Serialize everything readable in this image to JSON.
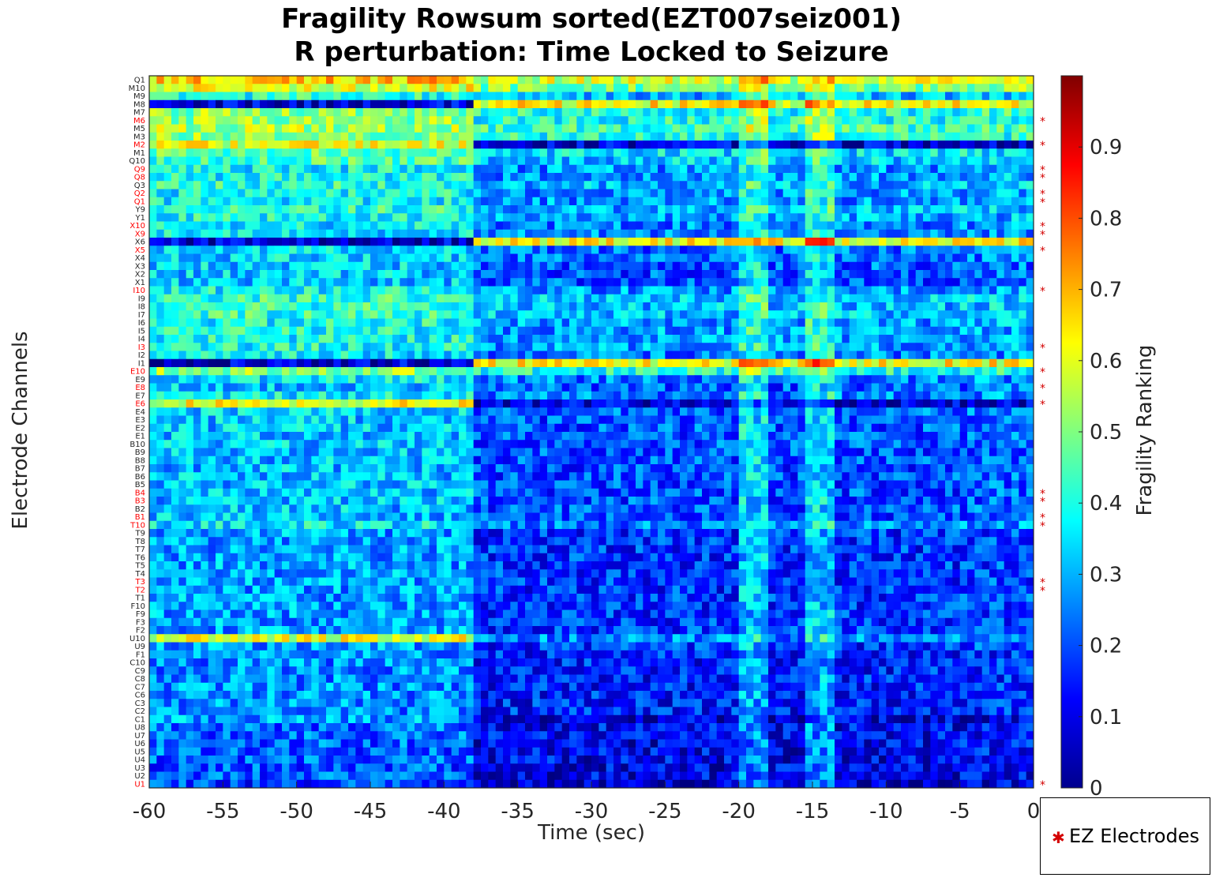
{
  "chart_data": {
    "type": "heatmap",
    "title": "Fragility Rowsum sorted(EZT007seiz001)",
    "subtitle": "R perturbation:  Time Locked to Seizure",
    "xlabel": "Time (sec)",
    "ylabel": "Electrode Channels",
    "colorbar_label": "Fragility Ranking",
    "xlim": [
      -60,
      0
    ],
    "x_ticks": [
      "-60",
      "-55",
      "-50",
      "-45",
      "-40",
      "-35",
      "-30",
      "-25",
      "-20",
      "-15",
      "-10",
      "-5",
      "0"
    ],
    "colorbar_range": [
      0,
      1
    ],
    "colorbar_ticks": [
      "0",
      "0.1",
      "0.2",
      "0.3",
      "0.4",
      "0.5",
      "0.6",
      "0.7",
      "0.8",
      "0.9"
    ],
    "colormap": "jet",
    "channels": [
      "Q1",
      "M10",
      "M9",
      "M8",
      "M7",
      "M6",
      "M5",
      "M3",
      "M2",
      "M1",
      "Q10",
      "Q9",
      "Q8",
      "Q3",
      "Q2",
      "Q1",
      "Y9",
      "Y1",
      "X10",
      "X9",
      "X6",
      "X5",
      "X4",
      "X3",
      "X2",
      "X1",
      "I10",
      "I9",
      "I8",
      "I7",
      "I6",
      "I5",
      "I4",
      "I3",
      "I2",
      "I1",
      "E10",
      "E9",
      "E8",
      "E7",
      "E6",
      "E4",
      "E3",
      "E2",
      "E1",
      "B10",
      "B9",
      "B8",
      "B7",
      "B6",
      "B5",
      "B4",
      "B3",
      "B2",
      "B1",
      "T10",
      "T9",
      "T8",
      "T7",
      "T6",
      "T5",
      "T4",
      "T3",
      "T2",
      "T1",
      "F10",
      "F9",
      "F3",
      "F2",
      "U10",
      "U9",
      "F1",
      "C10",
      "C9",
      "C8",
      "C7",
      "C6",
      "C3",
      "C2",
      "C1",
      "U8",
      "U7",
      "U6",
      "U5",
      "U4",
      "U3",
      "U2",
      "U1"
    ],
    "ez_channels": [
      "M6",
      "M2",
      "Q9",
      "Q8",
      "Q2",
      "Q1",
      "X10",
      "X9",
      "X5",
      "I10",
      "I3",
      "E10",
      "E8",
      "E6",
      "B4",
      "B3",
      "B1",
      "T10",
      "T3",
      "T2",
      "U1"
    ],
    "ez_color": "#ff0000",
    "legend": {
      "entry": "EZ Electrodes",
      "placement": "bottom-right-outside"
    },
    "band_profiles": {
      "channel_baseline": [
        0.62,
        0.55,
        0.35,
        0.5,
        0.45,
        0.45,
        0.48,
        0.45,
        0.55,
        0.4,
        0.38,
        0.32,
        0.32,
        0.35,
        0.32,
        0.32,
        0.35,
        0.33,
        0.3,
        0.3,
        0.45,
        0.28,
        0.28,
        0.27,
        0.26,
        0.26,
        0.32,
        0.36,
        0.36,
        0.36,
        0.33,
        0.33,
        0.33,
        0.33,
        0.3,
        0.3,
        0.45,
        0.3,
        0.26,
        0.3,
        0.4,
        0.27,
        0.26,
        0.26,
        0.26,
        0.26,
        0.25,
        0.25,
        0.25,
        0.25,
        0.25,
        0.25,
        0.25,
        0.25,
        0.25,
        0.3,
        0.22,
        0.22,
        0.22,
        0.22,
        0.22,
        0.22,
        0.22,
        0.22,
        0.22,
        0.22,
        0.22,
        0.22,
        0.22,
        0.3,
        0.22,
        0.2,
        0.2,
        0.2,
        0.2,
        0.2,
        0.2,
        0.2,
        0.2,
        0.22,
        0.17,
        0.17,
        0.16,
        0.16,
        0.16,
        0.15,
        0.15,
        0.12
      ],
      "early_bright_channels": [
        "M2",
        "E6",
        "U10"
      ],
      "late_bright_channels": [
        "M8",
        "X6",
        "I1"
      ],
      "late_dark_channels": [
        "M2",
        "E6",
        "C1"
      ],
      "early_dark_channels": [
        "M8",
        "X6",
        "I1"
      ],
      "bright_time_stripes_sec": [
        -19,
        -14.5
      ]
    }
  }
}
